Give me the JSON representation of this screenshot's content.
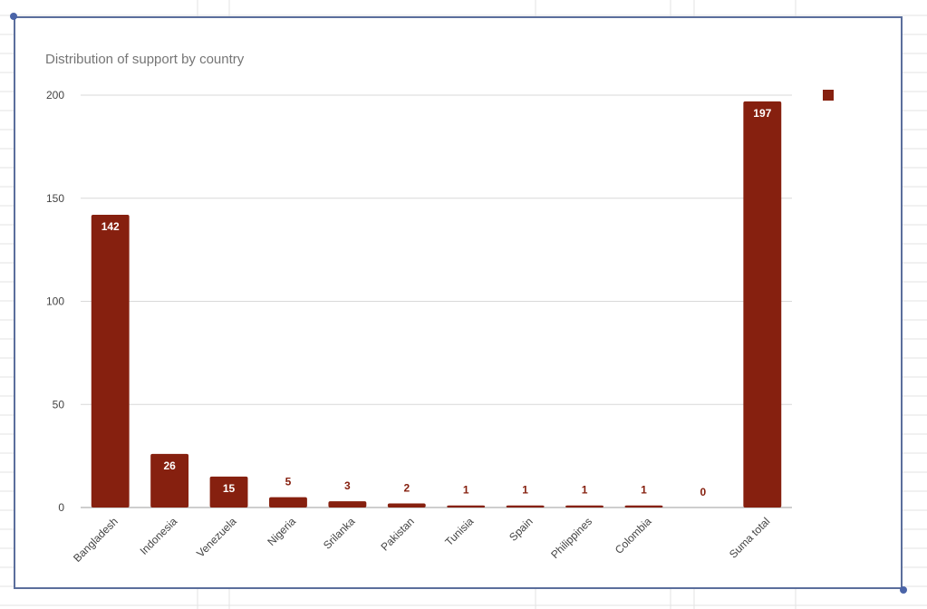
{
  "chart_data": {
    "type": "bar",
    "title": "Distribution of support by country",
    "xlabel": "",
    "ylabel": "",
    "categories": [
      "Bangladesh",
      "Indonesia",
      "Venezuela",
      "Nigeria",
      "Srilanka",
      "Pakistan",
      "Tunisia",
      "Spain",
      "Philippines",
      "Colombia",
      "",
      "Suma total"
    ],
    "values": [
      142,
      26,
      15,
      5,
      3,
      2,
      1,
      1,
      1,
      1,
      0,
      197
    ],
    "ylim": [
      0,
      200
    ],
    "yticks": [
      0,
      50,
      100,
      150,
      200
    ],
    "grid": true,
    "legend": "top-right",
    "colors": {
      "bar": "#86200f",
      "label_inside": "#ffffff",
      "label_outside": "#86200f",
      "grid": "#d9d9d9"
    }
  }
}
